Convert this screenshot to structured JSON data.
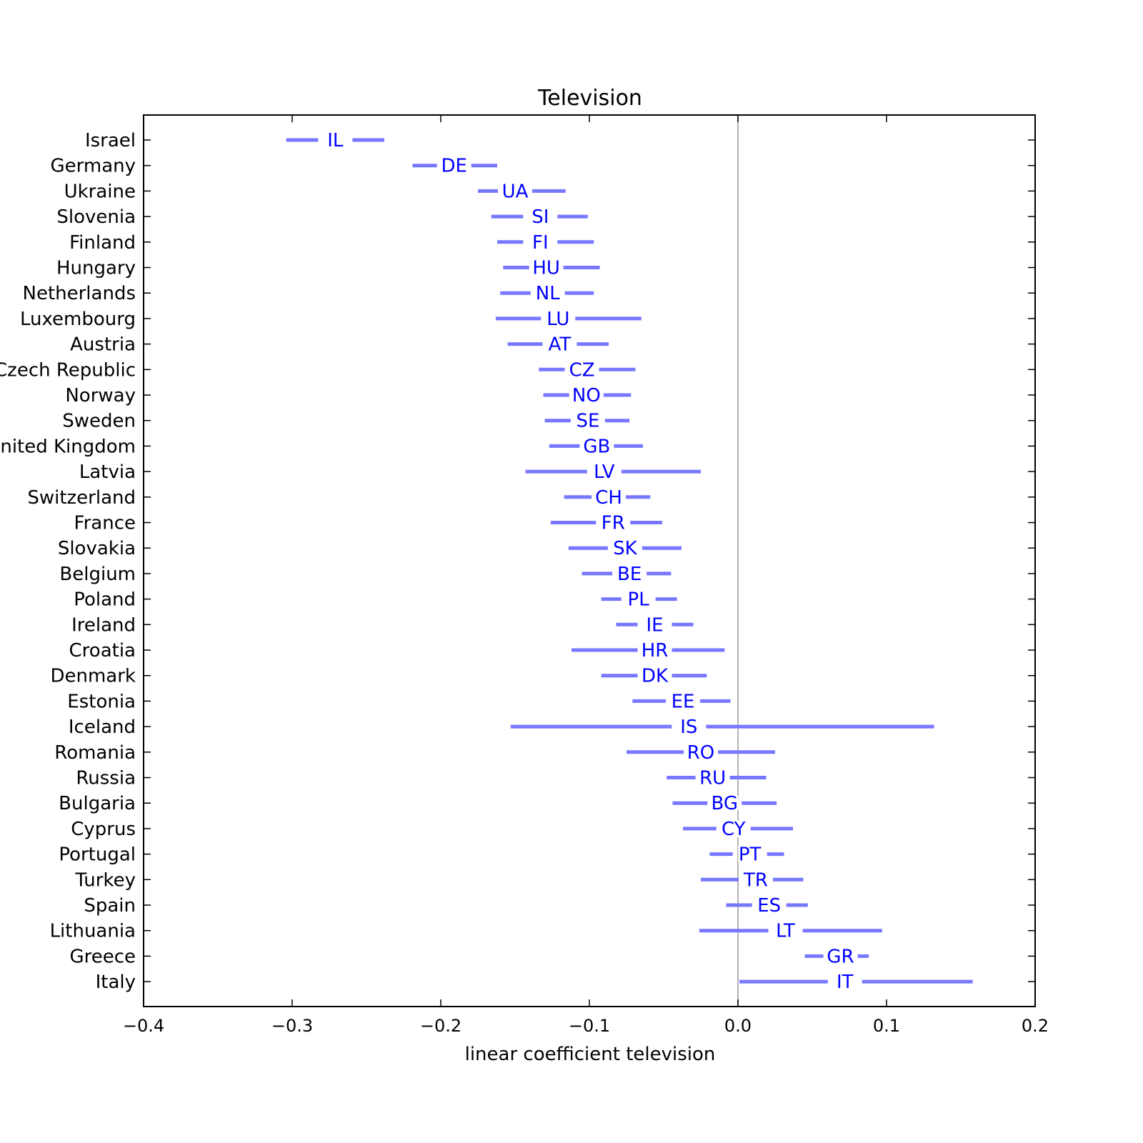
{
  "chart_data": {
    "type": "interval",
    "title": "Television",
    "xlabel": "linear coefficient television",
    "ylabel": "",
    "xlim": [
      -0.4,
      0.2
    ],
    "xticks": [
      -0.4,
      -0.3,
      -0.2,
      -0.1,
      0.0,
      0.1,
      0.2
    ],
    "xtick_labels": [
      "−0.4",
      "−0.3",
      "−0.2",
      "−0.1",
      "0.0",
      "0.1",
      "0.2"
    ],
    "reference_line_x": 0.0,
    "grid": false,
    "colors": {
      "interval": "#7777ff",
      "code_label": "#0000ff",
      "reference": "#b3b3b3",
      "axes": "#000000"
    },
    "rows": [
      {
        "country": "Israel",
        "code": "IL",
        "low": -0.304,
        "high": -0.238,
        "estimate": -0.271
      },
      {
        "country": "Germany",
        "code": "DE",
        "low": -0.219,
        "high": -0.162,
        "estimate": -0.191
      },
      {
        "country": "Ukraine",
        "code": "UA",
        "low": -0.175,
        "high": -0.116,
        "estimate": -0.15
      },
      {
        "country": "Slovenia",
        "code": "SI",
        "low": -0.166,
        "high": -0.101,
        "estimate": -0.133
      },
      {
        "country": "Finland",
        "code": "FI",
        "low": -0.162,
        "high": -0.097,
        "estimate": -0.133
      },
      {
        "country": "Hungary",
        "code": "HU",
        "low": -0.158,
        "high": -0.093,
        "estimate": -0.129
      },
      {
        "country": "Netherlands",
        "code": "NL",
        "low": -0.16,
        "high": -0.097,
        "estimate": -0.128
      },
      {
        "country": "Luxembourg",
        "code": "LU",
        "low": -0.163,
        "high": -0.065,
        "estimate": -0.121
      },
      {
        "country": "Austria",
        "code": "AT",
        "low": -0.155,
        "high": -0.087,
        "estimate": -0.12
      },
      {
        "country": "Czech Republic",
        "code": "CZ",
        "low": -0.134,
        "high": -0.069,
        "estimate": -0.105
      },
      {
        "country": "Norway",
        "code": "NO",
        "low": -0.131,
        "high": -0.072,
        "estimate": -0.102
      },
      {
        "country": "Sweden",
        "code": "SE",
        "low": -0.13,
        "high": -0.073,
        "estimate": -0.101
      },
      {
        "country": "United Kingdom",
        "code": "GB",
        "low": -0.127,
        "high": -0.064,
        "estimate": -0.095
      },
      {
        "country": "Latvia",
        "code": "LV",
        "low": -0.143,
        "high": -0.025,
        "estimate": -0.09
      },
      {
        "country": "Switzerland",
        "code": "CH",
        "low": -0.117,
        "high": -0.059,
        "estimate": -0.087
      },
      {
        "country": "France",
        "code": "FR",
        "low": -0.126,
        "high": -0.051,
        "estimate": -0.084
      },
      {
        "country": "Slovakia",
        "code": "SK",
        "low": -0.114,
        "high": -0.038,
        "estimate": -0.076
      },
      {
        "country": "Belgium",
        "code": "BE",
        "low": -0.105,
        "high": -0.045,
        "estimate": -0.073
      },
      {
        "country": "Poland",
        "code": "PL",
        "low": -0.092,
        "high": -0.041,
        "estimate": -0.067
      },
      {
        "country": "Ireland",
        "code": "IE",
        "low": -0.082,
        "high": -0.03,
        "estimate": -0.056
      },
      {
        "country": "Croatia",
        "code": "HR",
        "low": -0.112,
        "high": -0.009,
        "estimate": -0.056
      },
      {
        "country": "Denmark",
        "code": "DK",
        "low": -0.092,
        "high": -0.021,
        "estimate": -0.056
      },
      {
        "country": "Estonia",
        "code": "EE",
        "low": -0.071,
        "high": -0.005,
        "estimate": -0.037
      },
      {
        "country": "Iceland",
        "code": "IS",
        "low": -0.153,
        "high": 0.132,
        "estimate": -0.033
      },
      {
        "country": "Romania",
        "code": "RO",
        "low": -0.075,
        "high": 0.025,
        "estimate": -0.025
      },
      {
        "country": "Russia",
        "code": "RU",
        "low": -0.048,
        "high": 0.019,
        "estimate": -0.017
      },
      {
        "country": "Bulgaria",
        "code": "BG",
        "low": -0.044,
        "high": 0.026,
        "estimate": -0.009
      },
      {
        "country": "Cyprus",
        "code": "CY",
        "low": -0.037,
        "high": 0.037,
        "estimate": -0.003
      },
      {
        "country": "Portugal",
        "code": "PT",
        "low": -0.019,
        "high": 0.031,
        "estimate": 0.008
      },
      {
        "country": "Turkey",
        "code": "TR",
        "low": -0.025,
        "high": 0.044,
        "estimate": 0.012
      },
      {
        "country": "Spain",
        "code": "ES",
        "low": -0.008,
        "high": 0.047,
        "estimate": 0.021
      },
      {
        "country": "Lithuania",
        "code": "LT",
        "low": -0.026,
        "high": 0.097,
        "estimate": 0.032
      },
      {
        "country": "Greece",
        "code": "GR",
        "low": 0.045,
        "high": 0.088,
        "estimate": 0.069
      },
      {
        "country": "Italy",
        "code": "IT",
        "low": 0.001,
        "high": 0.158,
        "estimate": 0.072
      }
    ]
  }
}
